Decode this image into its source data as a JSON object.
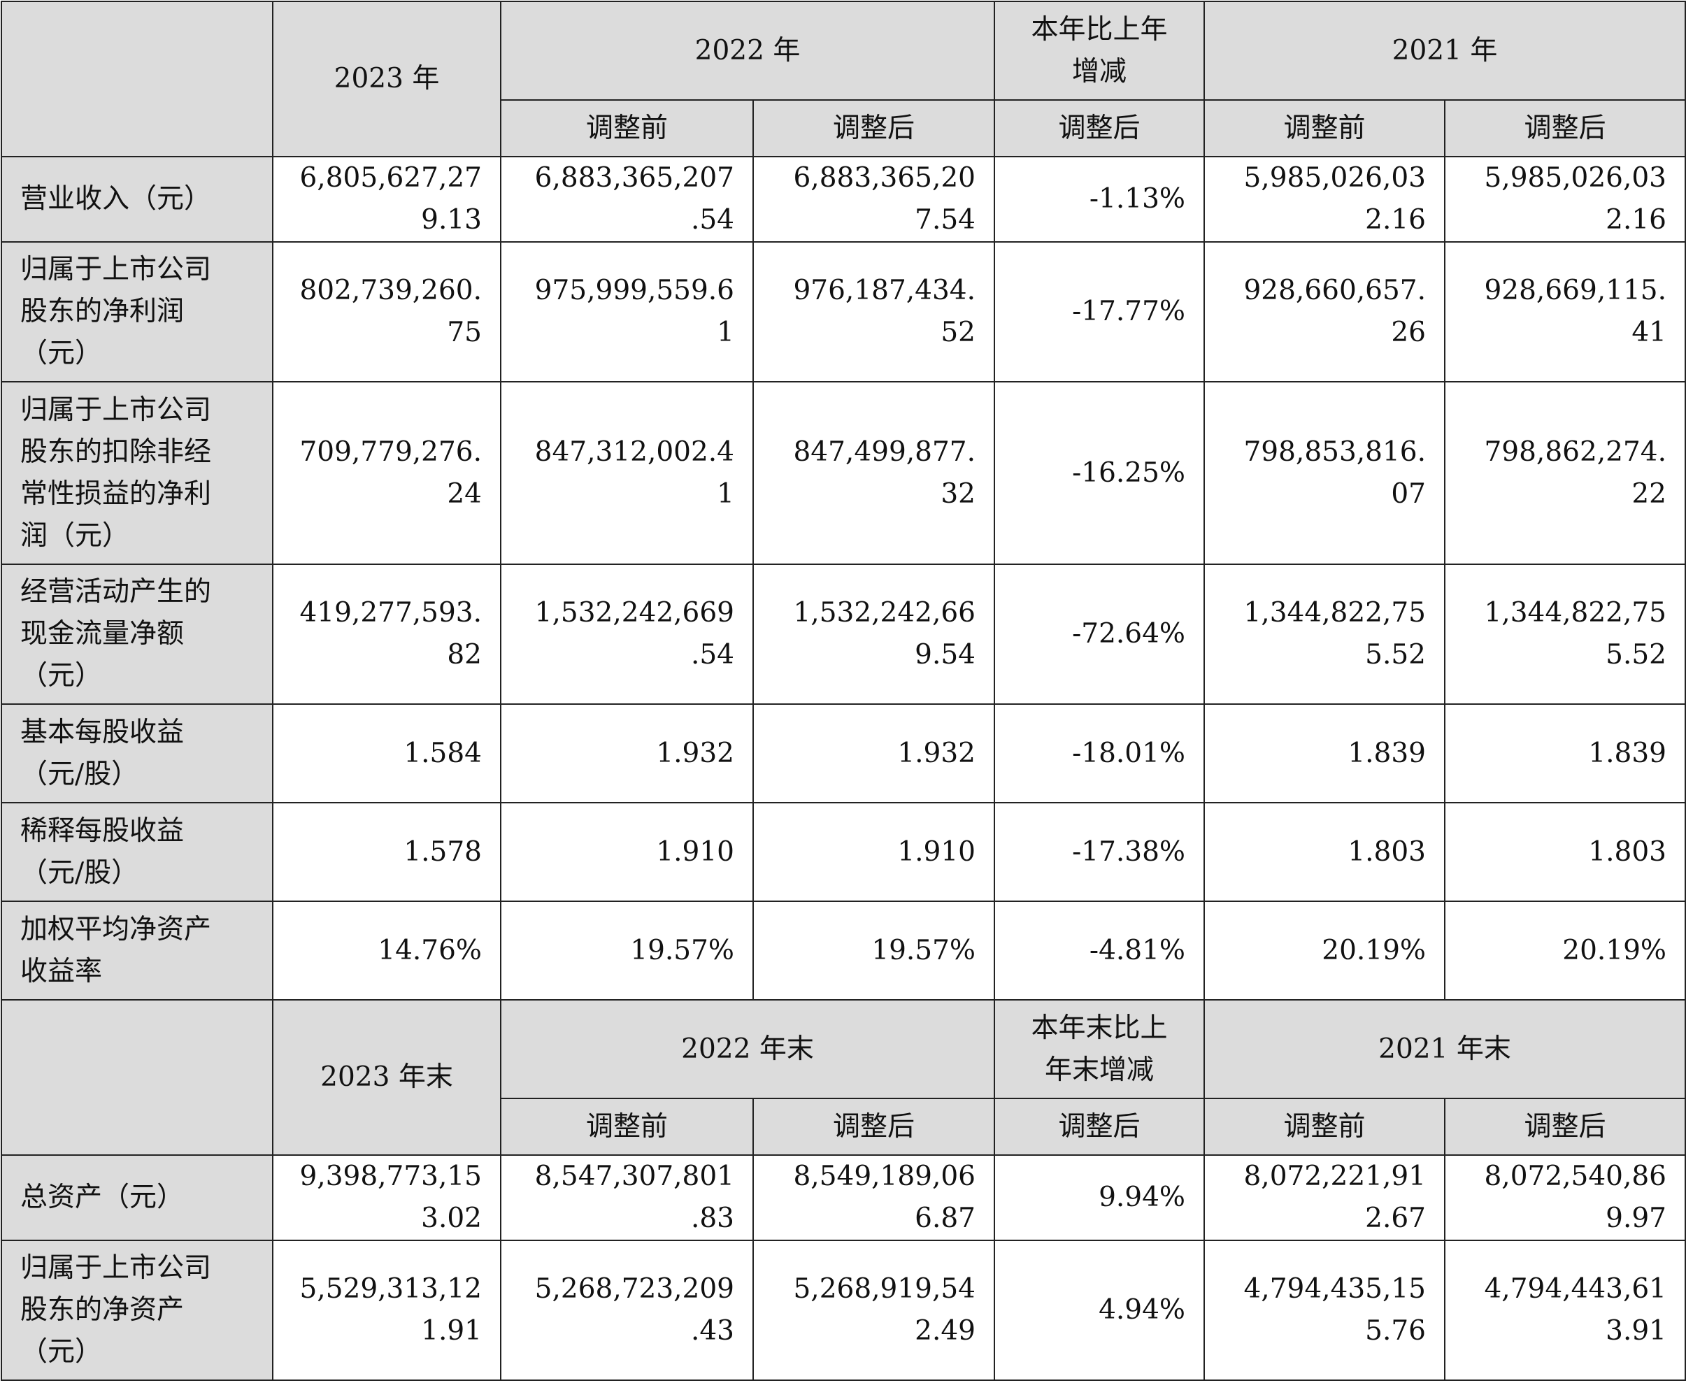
{
  "header_income": {
    "y2023": "2023 年",
    "y2022": "2022 年",
    "change_l1": "本年比上年",
    "change_l2": "增减",
    "y2021": "2021 年",
    "before": "调整前",
    "after": "调整后"
  },
  "income_rows": [
    {
      "label": [
        "营业收入（元）"
      ],
      "v2023": [
        "6,805,627,27",
        "9.13"
      ],
      "v2022_before": [
        "6,883,365,207",
        ".54"
      ],
      "v2022_after": [
        "6,883,365,20",
        "7.54"
      ],
      "change": "-1.13%",
      "v2021_before": [
        "5,985,026,03",
        "2.16"
      ],
      "v2021_after": [
        "5,985,026,03",
        "2.16"
      ]
    },
    {
      "label": [
        "归属于上市公司",
        "股东的净利润",
        "（元）"
      ],
      "v2023": [
        "802,739,260.",
        "75"
      ],
      "v2022_before": [
        "975,999,559.6",
        "1"
      ],
      "v2022_after": [
        "976,187,434.",
        "52"
      ],
      "change": "-17.77%",
      "v2021_before": [
        "928,660,657.",
        "26"
      ],
      "v2021_after": [
        "928,669,115.",
        "41"
      ]
    },
    {
      "label": [
        "归属于上市公司",
        "股东的扣除非经",
        "常性损益的净利",
        "润（元）"
      ],
      "v2023": [
        "709,779,276.",
        "24"
      ],
      "v2022_before": [
        "847,312,002.4",
        "1"
      ],
      "v2022_after": [
        "847,499,877.",
        "32"
      ],
      "change": "-16.25%",
      "v2021_before": [
        "798,853,816.",
        "07"
      ],
      "v2021_after": [
        "798,862,274.",
        "22"
      ]
    },
    {
      "label": [
        "经营活动产生的",
        "现金流量净额",
        "（元）"
      ],
      "v2023": [
        "419,277,593.",
        "82"
      ],
      "v2022_before": [
        "1,532,242,669",
        ".54"
      ],
      "v2022_after": [
        "1,532,242,66",
        "9.54"
      ],
      "change": "-72.64%",
      "v2021_before": [
        "1,344,822,75",
        "5.52"
      ],
      "v2021_after": [
        "1,344,822,75",
        "5.52"
      ]
    },
    {
      "label": [
        "基本每股收益",
        "（元/股）"
      ],
      "v2023": [
        "1.584"
      ],
      "v2022_before": [
        "1.932"
      ],
      "v2022_after": [
        "1.932"
      ],
      "change": "-18.01%",
      "v2021_before": [
        "1.839"
      ],
      "v2021_after": [
        "1.839"
      ]
    },
    {
      "label": [
        "稀释每股收益",
        "（元/股）"
      ],
      "v2023": [
        "1.578"
      ],
      "v2022_before": [
        "1.910"
      ],
      "v2022_after": [
        "1.910"
      ],
      "change": "-17.38%",
      "v2021_before": [
        "1.803"
      ],
      "v2021_after": [
        "1.803"
      ]
    },
    {
      "label": [
        "加权平均净资产",
        "收益率"
      ],
      "v2023": [
        "14.76%"
      ],
      "v2022_before": [
        "19.57%"
      ],
      "v2022_after": [
        "19.57%"
      ],
      "change": "-4.81%",
      "v2021_before": [
        "20.19%"
      ],
      "v2021_after": [
        "20.19%"
      ]
    }
  ],
  "header_balance": {
    "y2023": "2023 年末",
    "y2022": "2022 年末",
    "change_l1": "本年末比上",
    "change_l2": "年末增减",
    "y2021": "2021 年末",
    "before": "调整前",
    "after": "调整后"
  },
  "balance_rows": [
    {
      "label": [
        "总资产（元）"
      ],
      "v2023": [
        "9,398,773,15",
        "3.02"
      ],
      "v2022_before": [
        "8,547,307,801",
        ".83"
      ],
      "v2022_after": [
        "8,549,189,06",
        "6.87"
      ],
      "change": "9.94%",
      "v2021_before": [
        "8,072,221,91",
        "2.67"
      ],
      "v2021_after": [
        "8,072,540,86",
        "9.97"
      ]
    },
    {
      "label": [
        "归属于上市公司",
        "股东的净资产",
        "（元）"
      ],
      "v2023": [
        "5,529,313,12",
        "1.91"
      ],
      "v2022_before": [
        "5,268,723,209",
        ".43"
      ],
      "v2022_after": [
        "5,268,919,54",
        "2.49"
      ],
      "change": "4.94%",
      "v2021_before": [
        "4,794,435,15",
        "5.76"
      ],
      "v2021_after": [
        "4,794,443,61",
        "3.91"
      ]
    }
  ]
}
